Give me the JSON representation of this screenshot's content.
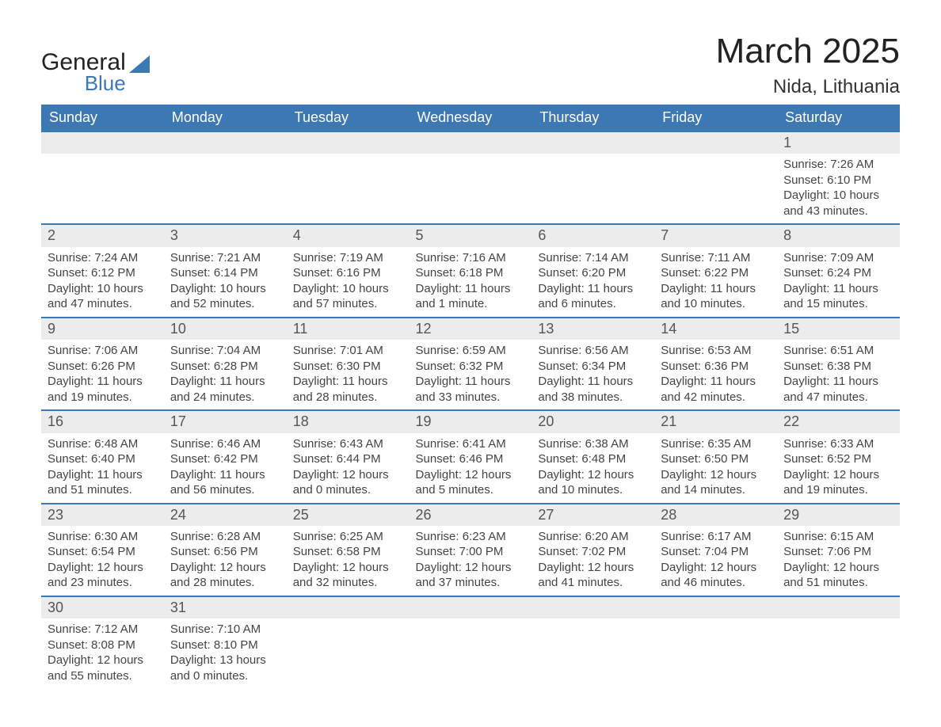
{
  "logo": {
    "main": "General",
    "sub": "Blue"
  },
  "title": "March 2025",
  "location": "Nida, Lithuania",
  "colors": {
    "accent": "#3c78b4",
    "header_text": "#ffffff",
    "daynum_bg": "#ececec",
    "text": "#444444",
    "bg": "#ffffff"
  },
  "day_headers": [
    "Sunday",
    "Monday",
    "Tuesday",
    "Wednesday",
    "Thursday",
    "Friday",
    "Saturday"
  ],
  "weeks": [
    [
      null,
      null,
      null,
      null,
      null,
      null,
      {
        "num": "1",
        "sunrise": "Sunrise: 7:26 AM",
        "sunset": "Sunset: 6:10 PM",
        "daylight1": "Daylight: 10 hours",
        "daylight2": "and 43 minutes."
      }
    ],
    [
      {
        "num": "2",
        "sunrise": "Sunrise: 7:24 AM",
        "sunset": "Sunset: 6:12 PM",
        "daylight1": "Daylight: 10 hours",
        "daylight2": "and 47 minutes."
      },
      {
        "num": "3",
        "sunrise": "Sunrise: 7:21 AM",
        "sunset": "Sunset: 6:14 PM",
        "daylight1": "Daylight: 10 hours",
        "daylight2": "and 52 minutes."
      },
      {
        "num": "4",
        "sunrise": "Sunrise: 7:19 AM",
        "sunset": "Sunset: 6:16 PM",
        "daylight1": "Daylight: 10 hours",
        "daylight2": "and 57 minutes."
      },
      {
        "num": "5",
        "sunrise": "Sunrise: 7:16 AM",
        "sunset": "Sunset: 6:18 PM",
        "daylight1": "Daylight: 11 hours",
        "daylight2": "and 1 minute."
      },
      {
        "num": "6",
        "sunrise": "Sunrise: 7:14 AM",
        "sunset": "Sunset: 6:20 PM",
        "daylight1": "Daylight: 11 hours",
        "daylight2": "and 6 minutes."
      },
      {
        "num": "7",
        "sunrise": "Sunrise: 7:11 AM",
        "sunset": "Sunset: 6:22 PM",
        "daylight1": "Daylight: 11 hours",
        "daylight2": "and 10 minutes."
      },
      {
        "num": "8",
        "sunrise": "Sunrise: 7:09 AM",
        "sunset": "Sunset: 6:24 PM",
        "daylight1": "Daylight: 11 hours",
        "daylight2": "and 15 minutes."
      }
    ],
    [
      {
        "num": "9",
        "sunrise": "Sunrise: 7:06 AM",
        "sunset": "Sunset: 6:26 PM",
        "daylight1": "Daylight: 11 hours",
        "daylight2": "and 19 minutes."
      },
      {
        "num": "10",
        "sunrise": "Sunrise: 7:04 AM",
        "sunset": "Sunset: 6:28 PM",
        "daylight1": "Daylight: 11 hours",
        "daylight2": "and 24 minutes."
      },
      {
        "num": "11",
        "sunrise": "Sunrise: 7:01 AM",
        "sunset": "Sunset: 6:30 PM",
        "daylight1": "Daylight: 11 hours",
        "daylight2": "and 28 minutes."
      },
      {
        "num": "12",
        "sunrise": "Sunrise: 6:59 AM",
        "sunset": "Sunset: 6:32 PM",
        "daylight1": "Daylight: 11 hours",
        "daylight2": "and 33 minutes."
      },
      {
        "num": "13",
        "sunrise": "Sunrise: 6:56 AM",
        "sunset": "Sunset: 6:34 PM",
        "daylight1": "Daylight: 11 hours",
        "daylight2": "and 38 minutes."
      },
      {
        "num": "14",
        "sunrise": "Sunrise: 6:53 AM",
        "sunset": "Sunset: 6:36 PM",
        "daylight1": "Daylight: 11 hours",
        "daylight2": "and 42 minutes."
      },
      {
        "num": "15",
        "sunrise": "Sunrise: 6:51 AM",
        "sunset": "Sunset: 6:38 PM",
        "daylight1": "Daylight: 11 hours",
        "daylight2": "and 47 minutes."
      }
    ],
    [
      {
        "num": "16",
        "sunrise": "Sunrise: 6:48 AM",
        "sunset": "Sunset: 6:40 PM",
        "daylight1": "Daylight: 11 hours",
        "daylight2": "and 51 minutes."
      },
      {
        "num": "17",
        "sunrise": "Sunrise: 6:46 AM",
        "sunset": "Sunset: 6:42 PM",
        "daylight1": "Daylight: 11 hours",
        "daylight2": "and 56 minutes."
      },
      {
        "num": "18",
        "sunrise": "Sunrise: 6:43 AM",
        "sunset": "Sunset: 6:44 PM",
        "daylight1": "Daylight: 12 hours",
        "daylight2": "and 0 minutes."
      },
      {
        "num": "19",
        "sunrise": "Sunrise: 6:41 AM",
        "sunset": "Sunset: 6:46 PM",
        "daylight1": "Daylight: 12 hours",
        "daylight2": "and 5 minutes."
      },
      {
        "num": "20",
        "sunrise": "Sunrise: 6:38 AM",
        "sunset": "Sunset: 6:48 PM",
        "daylight1": "Daylight: 12 hours",
        "daylight2": "and 10 minutes."
      },
      {
        "num": "21",
        "sunrise": "Sunrise: 6:35 AM",
        "sunset": "Sunset: 6:50 PM",
        "daylight1": "Daylight: 12 hours",
        "daylight2": "and 14 minutes."
      },
      {
        "num": "22",
        "sunrise": "Sunrise: 6:33 AM",
        "sunset": "Sunset: 6:52 PM",
        "daylight1": "Daylight: 12 hours",
        "daylight2": "and 19 minutes."
      }
    ],
    [
      {
        "num": "23",
        "sunrise": "Sunrise: 6:30 AM",
        "sunset": "Sunset: 6:54 PM",
        "daylight1": "Daylight: 12 hours",
        "daylight2": "and 23 minutes."
      },
      {
        "num": "24",
        "sunrise": "Sunrise: 6:28 AM",
        "sunset": "Sunset: 6:56 PM",
        "daylight1": "Daylight: 12 hours",
        "daylight2": "and 28 minutes."
      },
      {
        "num": "25",
        "sunrise": "Sunrise: 6:25 AM",
        "sunset": "Sunset: 6:58 PM",
        "daylight1": "Daylight: 12 hours",
        "daylight2": "and 32 minutes."
      },
      {
        "num": "26",
        "sunrise": "Sunrise: 6:23 AM",
        "sunset": "Sunset: 7:00 PM",
        "daylight1": "Daylight: 12 hours",
        "daylight2": "and 37 minutes."
      },
      {
        "num": "27",
        "sunrise": "Sunrise: 6:20 AM",
        "sunset": "Sunset: 7:02 PM",
        "daylight1": "Daylight: 12 hours",
        "daylight2": "and 41 minutes."
      },
      {
        "num": "28",
        "sunrise": "Sunrise: 6:17 AM",
        "sunset": "Sunset: 7:04 PM",
        "daylight1": "Daylight: 12 hours",
        "daylight2": "and 46 minutes."
      },
      {
        "num": "29",
        "sunrise": "Sunrise: 6:15 AM",
        "sunset": "Sunset: 7:06 PM",
        "daylight1": "Daylight: 12 hours",
        "daylight2": "and 51 minutes."
      }
    ],
    [
      {
        "num": "30",
        "sunrise": "Sunrise: 7:12 AM",
        "sunset": "Sunset: 8:08 PM",
        "daylight1": "Daylight: 12 hours",
        "daylight2": "and 55 minutes."
      },
      {
        "num": "31",
        "sunrise": "Sunrise: 7:10 AM",
        "sunset": "Sunset: 8:10 PM",
        "daylight1": "Daylight: 13 hours",
        "daylight2": "and 0 minutes."
      },
      null,
      null,
      null,
      null,
      null
    ]
  ]
}
